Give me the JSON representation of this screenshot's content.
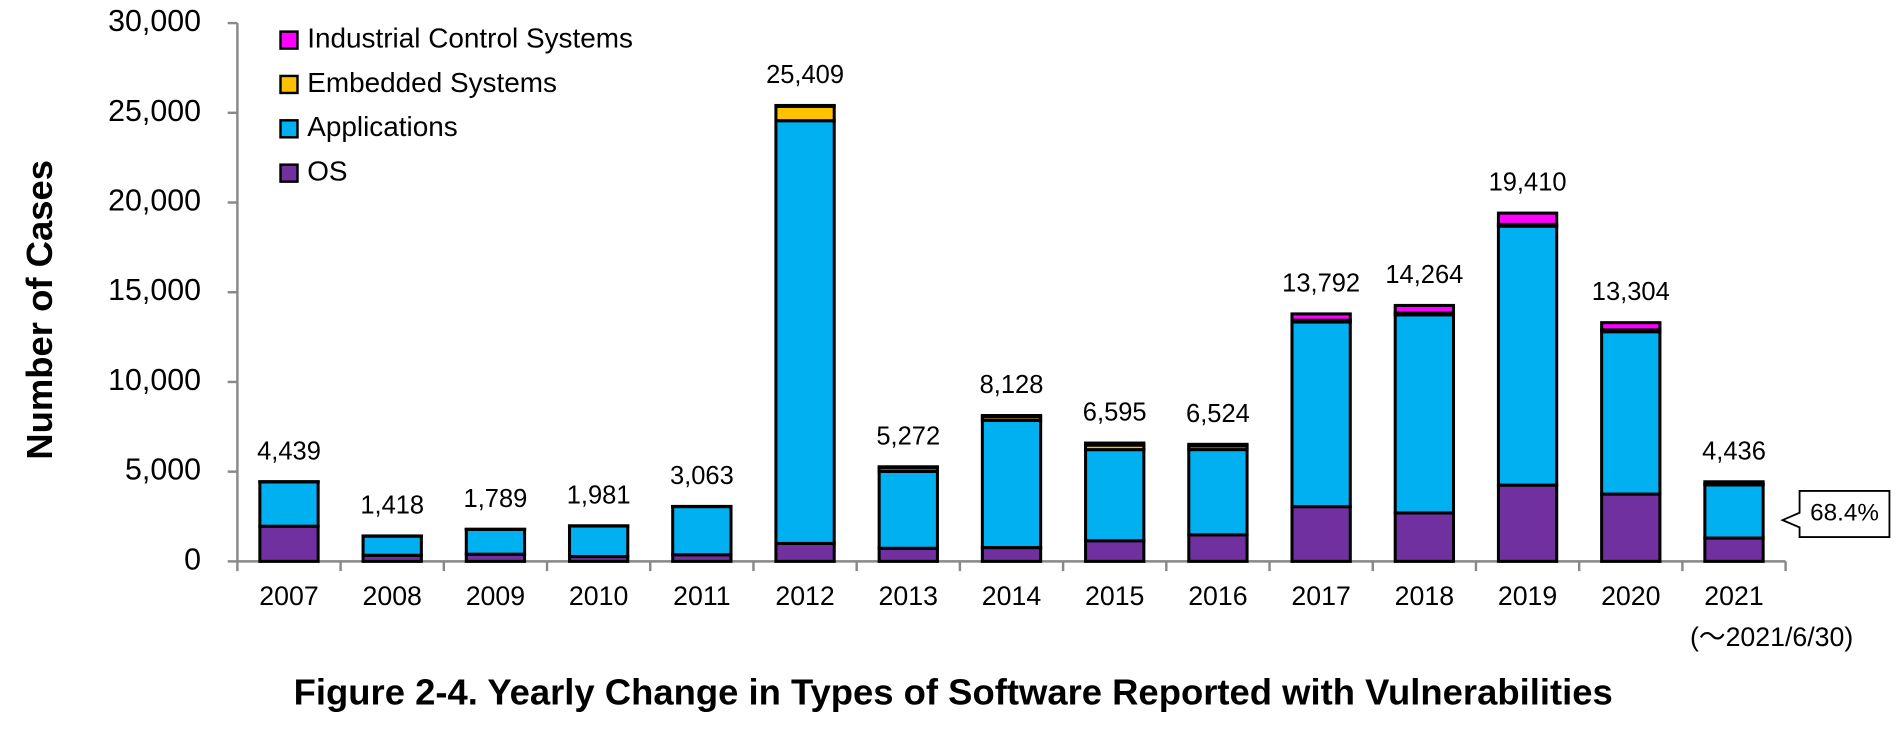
{
  "chart_data": {
    "type": "stacked_bar",
    "title": "Figure 2-4. Yearly Change in Types of Software Reported with Vulnerabilities",
    "y_label": "Number of Cases",
    "categories": [
      "2007",
      "2008",
      "2009",
      "2010",
      "2011",
      "2012",
      "2013",
      "2014",
      "2015",
      "2016",
      "2017",
      "2018",
      "2019",
      "2020",
      "2021"
    ],
    "category_note": "(～2021/6/30)",
    "series": [
      {
        "name": "OS",
        "color": "#7030a0",
        "values": [
          1960,
          340,
          400,
          270,
          370,
          1000,
          730,
          770,
          1150,
          1480,
          3050,
          2700,
          4250,
          3750,
          1300
        ]
      },
      {
        "name": "Applications",
        "color": "#00b0f0",
        "values": [
          2469,
          1068,
          1379,
          1701,
          2683,
          23560,
          4280,
          7083,
          5078,
          4750,
          10290,
          11040,
          14430,
          9050,
          2960
        ]
      },
      {
        "name": "Embedded Systems",
        "color": "#ffc000",
        "values": [
          5,
          5,
          5,
          5,
          5,
          800,
          200,
          200,
          250,
          200,
          100,
          100,
          100,
          100,
          50
        ]
      },
      {
        "name": "Industrial Control Systems",
        "color": "#ff00ff",
        "values": [
          5,
          5,
          5,
          5,
          5,
          49,
          62,
          75,
          117,
          94,
          352,
          424,
          630,
          404,
          126
        ]
      }
    ],
    "totals": {
      "values": [
        4439,
        1418,
        1789,
        1981,
        3063,
        25409,
        5272,
        8128,
        6595,
        6524,
        13792,
        14264,
        19410,
        13304,
        4436
      ],
      "value_labels": [
        "4,439",
        "1,418",
        "1,789",
        "1,981",
        "3,063",
        "25,409",
        "5,272",
        "8,128",
        "6,595",
        "6,524",
        "13,792",
        "14,264",
        "19,410",
        "13,304",
        "4,436"
      ]
    },
    "annotation": {
      "text": "68.4%",
      "value": 68.4
    },
    "ylim": [
      0,
      30000
    ],
    "yticks": [
      0,
      {
        "value": 5000,
        "label": "5,000"
      },
      {
        "value": 10000,
        "label": "10,000"
      },
      {
        "value": 15000,
        "label": "15,000"
      },
      {
        "value": 20000,
        "label": "20,000"
      },
      {
        "value": 25000,
        "label": "25,000"
      },
      {
        "value": 30000,
        "label": "30,000"
      }
    ],
    "legend": "upper left"
  }
}
